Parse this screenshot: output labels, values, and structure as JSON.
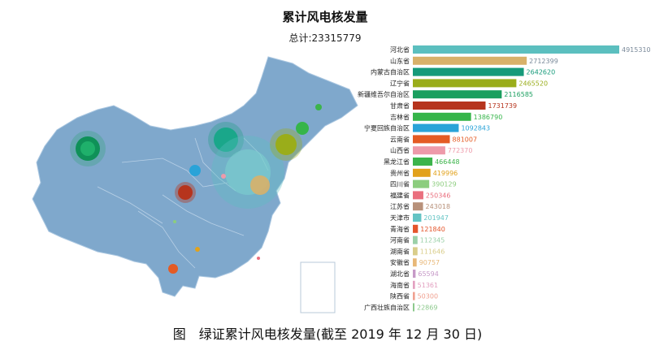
{
  "title": "累计风电核发量",
  "subtitle": "总计:23315779",
  "caption": "图　绿证累计风电核发量(截至 2019 年 12 月 30 日)",
  "chart_data": {
    "type": "bar",
    "orientation": "horizontal",
    "categories": [
      "河北省",
      "山东省",
      "内蒙古自治区",
      "辽宁省",
      "新疆维吾尔自治区",
      "甘肃省",
      "吉林省",
      "宁夏回族自治区",
      "云南省",
      "山西省",
      "黑龙江省",
      "贵州省",
      "四川省",
      "福建省",
      "江苏省",
      "天津市",
      "青海省",
      "河南省",
      "湖南省",
      "安徽省",
      "湖北省",
      "海南省",
      "陕西省",
      "广西壮族自治区"
    ],
    "values": [
      4915310,
      2712399,
      2642620,
      2465520,
      2116585,
      1731739,
      1386790,
      1092843,
      881007,
      772370,
      466448,
      419996,
      390129,
      250346,
      243018,
      201947,
      121840,
      112345,
      111646,
      90757,
      65594,
      51361,
      50300,
      22869
    ],
    "colors": [
      "#5bbfbf",
      "#d8b169",
      "#159a7a",
      "#9aad1a",
      "#1a9f5f",
      "#b6341d",
      "#36b54a",
      "#2aa3d8",
      "#e45b24",
      "#ee9aaa",
      "#3cb44b",
      "#e2a21b",
      "#8ccd7e",
      "#ea6f7e",
      "#b8917a",
      "#64c4c4",
      "#e4552b",
      "#9bd0a8",
      "#d9cd8a",
      "#e8b878",
      "#c79ac8",
      "#e3a0c0",
      "#f0a090",
      "#8cc98c"
    ],
    "xlim": [
      0,
      4915310
    ],
    "grid": false,
    "legend": "none"
  },
  "map": {
    "bubbles": [
      "xinjiang",
      "inner-mongolia",
      "hebei",
      "liaoning",
      "jilin",
      "gansu",
      "ningxia",
      "shandong",
      "shanxi",
      "shaanxi",
      "yunnan"
    ]
  }
}
